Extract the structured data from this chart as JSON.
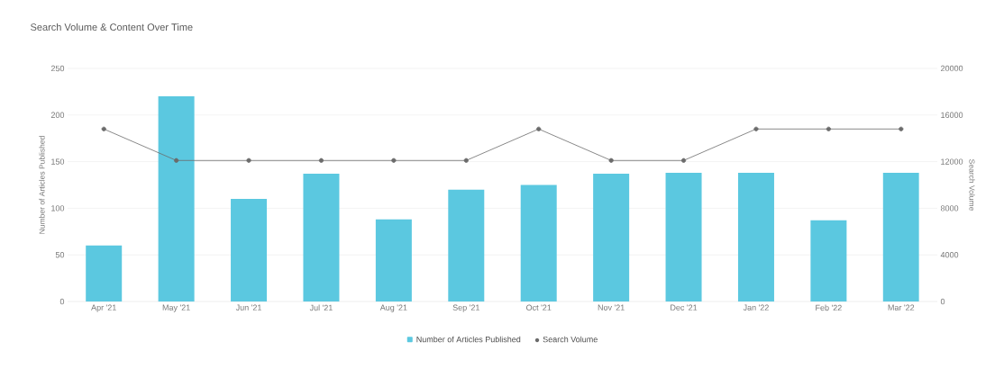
{
  "chart_data": {
    "type": "bar",
    "title": "Search Volume & Content Over Time",
    "categories": [
      "Apr '21",
      "May '21",
      "Jun '21",
      "Jul '21",
      "Aug '21",
      "Sep '21",
      "Oct '21",
      "Nov '21",
      "Dec '21",
      "Jan '22",
      "Feb '22",
      "Mar '22"
    ],
    "series": [
      {
        "name": "Number of Articles Published",
        "color": "#5bc8e0",
        "values": [
          60,
          220,
          110,
          137,
          88,
          120,
          125,
          137,
          138,
          138,
          87,
          138
        ]
      },
      {
        "name": "Search Volume",
        "type": "line",
        "axis": "y2",
        "color": "#6b6b6b",
        "values": [
          14800,
          12100,
          12100,
          12100,
          12100,
          12100,
          14800,
          12100,
          12100,
          14800,
          14800,
          14800
        ]
      }
    ],
    "ylabel": "Number of Articles Published",
    "y2label": "Search Volume",
    "ylim": [
      0,
      250
    ],
    "yticks": [
      0,
      50,
      100,
      150,
      200,
      250
    ],
    "y2lim": [
      0,
      20000
    ],
    "y2ticks": [
      0,
      4000,
      8000,
      12000,
      16000,
      20000
    ],
    "grid": "y",
    "legend": "bottom",
    "marker": "circle"
  }
}
